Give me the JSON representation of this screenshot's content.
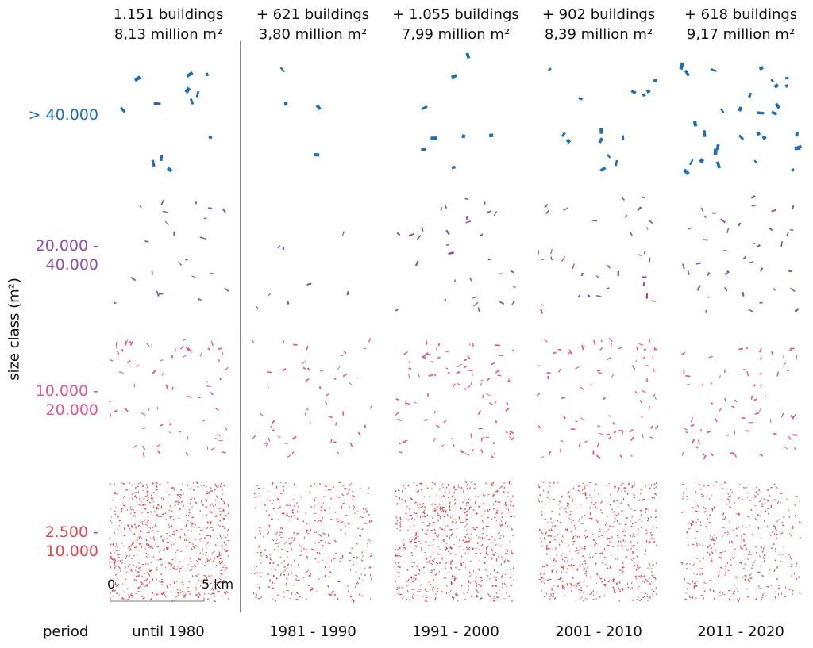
{
  "chart_data": {
    "type": "small-multiples-map",
    "columns": [
      {
        "period": "until 1980",
        "buildings": "1.151 buildings",
        "area": "8,13 million m²"
      },
      {
        "period": "1981 - 1990",
        "buildings": "+ 621 buildings",
        "area": "3,80 million m²"
      },
      {
        "period": "1991 - 2000",
        "buildings": "+ 1.055 buildings",
        "area": "7,99 million m²"
      },
      {
        "period": "2001 - 2010",
        "buildings": "+ 902 buildings",
        "area": "8,39 million m²"
      },
      {
        "period": "2011 - 2020",
        "buildings": "+ 618 buildings",
        "area": "9,17 million m²"
      }
    ],
    "size_classes": [
      {
        "line1": "> 40.000",
        "line2": "",
        "color": "#1f6fb4"
      },
      {
        "line1": "20.000 -",
        "line2": "40.000",
        "color": "#8e4fa8"
      },
      {
        "line1": "10.000 -",
        "line2": "20.000",
        "color": "#e8558f"
      },
      {
        "line1": "2.500 -",
        "line2": "10.000",
        "color": "#e2484e"
      }
    ],
    "y_title": "size class (m²)",
    "period_label": "period",
    "approx_marks": [
      [
        12,
        4,
        8,
        14,
        30
      ],
      [
        22,
        8,
        30,
        34,
        40
      ],
      [
        70,
        50,
        90,
        80,
        70
      ],
      [
        700,
        380,
        650,
        560,
        380
      ]
    ],
    "scale_bar": {
      "start": "0",
      "end": "5 km"
    }
  }
}
